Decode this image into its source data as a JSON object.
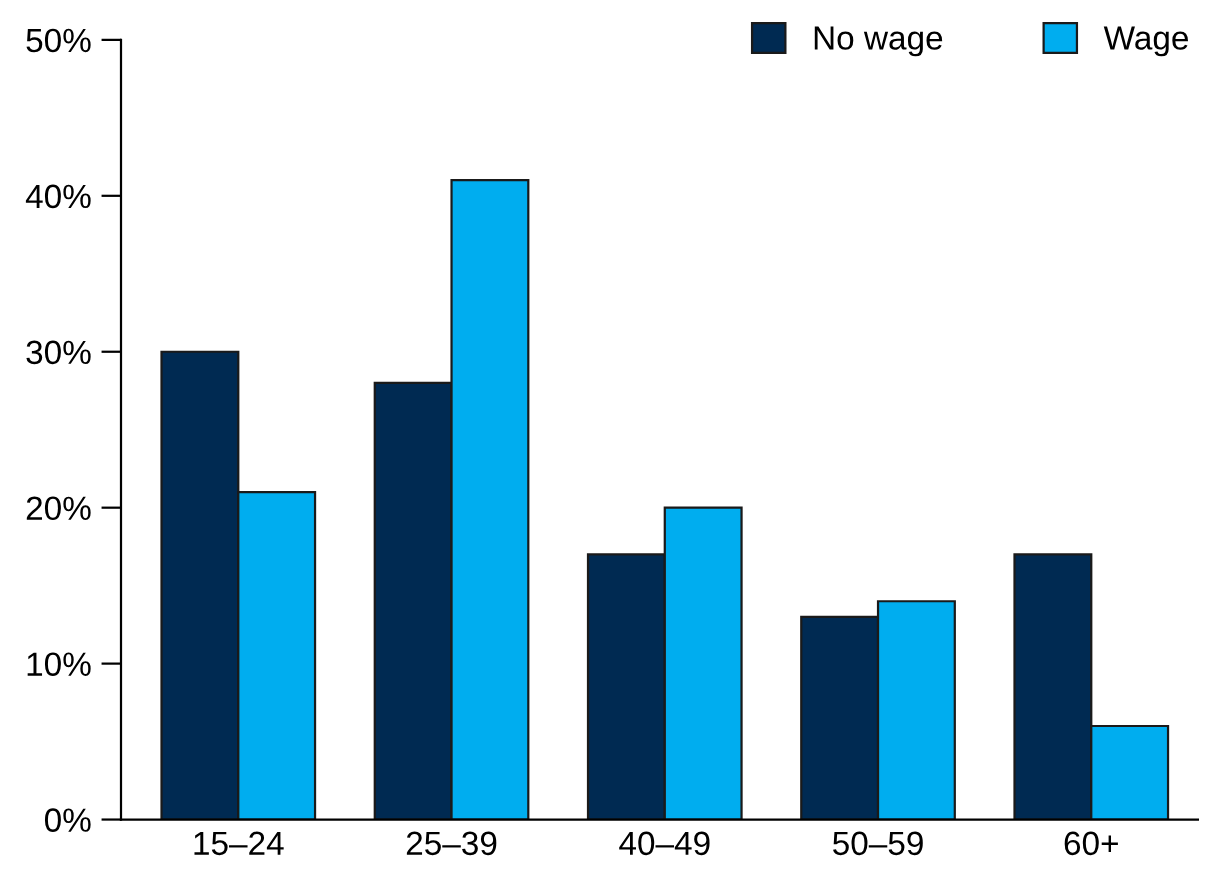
{
  "chart_data": {
    "type": "bar",
    "categories": [
      "15–24",
      "25–39",
      "40–49",
      "50–59",
      "60+"
    ],
    "series": [
      {
        "name": "No wage",
        "color": "#002a52",
        "values": [
          30,
          28,
          17,
          13,
          17
        ]
      },
      {
        "name": "Wage",
        "color": "#00adef",
        "values": [
          21,
          41,
          20,
          14,
          6
        ]
      }
    ],
    "ylim": [
      0,
      50
    ],
    "yticks": [
      {
        "value": 0,
        "label": "0%"
      },
      {
        "value": 10,
        "label": "10%"
      },
      {
        "value": 20,
        "label": "20%"
      },
      {
        "value": 30,
        "label": "30%"
      },
      {
        "value": 40,
        "label": "40%"
      },
      {
        "value": 50,
        "label": "50%"
      }
    ],
    "grid": false,
    "legend": "top right"
  }
}
